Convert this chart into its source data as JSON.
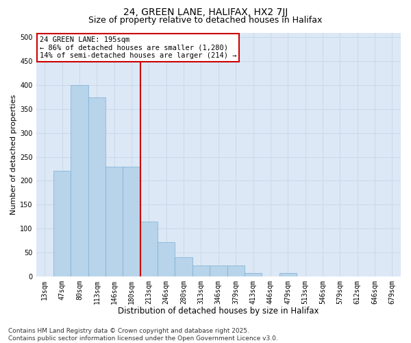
{
  "title1": "24, GREEN LANE, HALIFAX, HX2 7JJ",
  "title2": "Size of property relative to detached houses in Halifax",
  "xlabel": "Distribution of detached houses by size in Halifax",
  "ylabel": "Number of detached properties",
  "categories": [
    "13sqm",
    "47sqm",
    "80sqm",
    "113sqm",
    "146sqm",
    "180sqm",
    "213sqm",
    "246sqm",
    "280sqm",
    "313sqm",
    "346sqm",
    "379sqm",
    "413sqm",
    "446sqm",
    "479sqm",
    "513sqm",
    "546sqm",
    "579sqm",
    "612sqm",
    "646sqm",
    "679sqm"
  ],
  "values": [
    0,
    220,
    400,
    375,
    230,
    230,
    115,
    72,
    40,
    22,
    22,
    22,
    7,
    0,
    7,
    0,
    0,
    0,
    0,
    0,
    0
  ],
  "bar_color": "#b8d4ea",
  "bar_edge_color": "#7aafd4",
  "vline_color": "#cc0000",
  "vline_index": 6,
  "annotation_text": "24 GREEN LANE: 195sqm\n← 86% of detached houses are smaller (1,280)\n14% of semi-detached houses are larger (214) →",
  "annotation_box_facecolor": "#ffffff",
  "annotation_box_edgecolor": "#cc0000",
  "ylim": [
    0,
    510
  ],
  "yticks": [
    0,
    50,
    100,
    150,
    200,
    250,
    300,
    350,
    400,
    450,
    500
  ],
  "grid_color": "#c8d8ec",
  "background_color": "#dce8f5",
  "footnote": "Contains HM Land Registry data © Crown copyright and database right 2025.\nContains public sector information licensed under the Open Government Licence v3.0.",
  "title_fontsize": 10,
  "subtitle_fontsize": 9,
  "xlabel_fontsize": 8.5,
  "ylabel_fontsize": 8,
  "tick_fontsize": 7,
  "annot_fontsize": 7.5,
  "footnote_fontsize": 6.5
}
